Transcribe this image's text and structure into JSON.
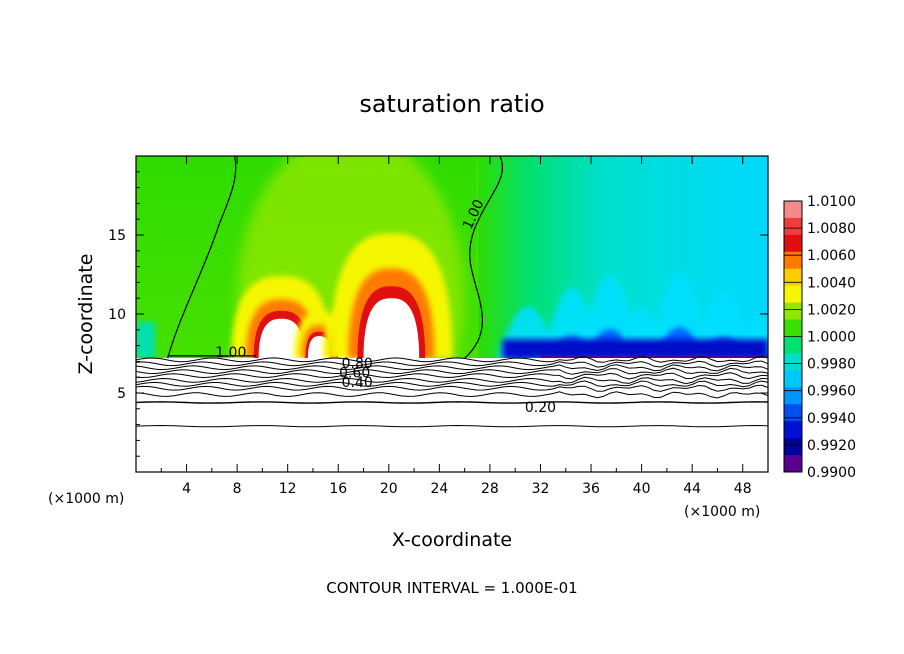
{
  "chart_data": {
    "type": "heatmap",
    "title": "saturation ratio",
    "xlabel": "X-coordinate",
    "ylabel": "Z-coordinate",
    "x_unit_left": "(×1000 m)",
    "x_unit_right": "(×1000 m)",
    "xlim": [
      0,
      50
    ],
    "ylim": [
      0,
      20
    ],
    "xticks": [
      4,
      8,
      12,
      16,
      20,
      24,
      28,
      32,
      36,
      40,
      44,
      48
    ],
    "yticks": [
      5,
      10,
      15
    ],
    "footer": "CONTOUR INTERVAL = 1.000E-01",
    "surface_height": 7.2,
    "colorbar": {
      "levels": [
        "1.0100",
        "1.0080",
        "1.0060",
        "1.0040",
        "1.0020",
        "1.0000",
        "0.9980",
        "0.9960",
        "0.9940",
        "0.9920",
        "0.9900"
      ],
      "colors": [
        "#f48a8a",
        "#f03c3c",
        "#e01010",
        "#ff7a00",
        "#ffcc00",
        "#f6f600",
        "#90e800",
        "#3ce000",
        "#00e070",
        "#00e0c8",
        "#00c8ff",
        "#0096ff",
        "#0050f0",
        "#0010d0",
        "#0000a0",
        "#5a0090"
      ]
    },
    "field_colors": {
      "supersat_core": "#ffffff",
      "rim_high": "#e01010",
      "orange": "#ff7a00",
      "yellow": "#f6f600",
      "lime": "#90e800",
      "green": "#2fdc00",
      "teal": "#00e0b0",
      "cyan": "#00e0ff",
      "blue": "#0064ff",
      "deep_blue": "#0010c8",
      "purple": "#5a0090"
    },
    "contour_labels": [
      {
        "text": "1.00",
        "x": 7.5,
        "z": 7.6
      },
      {
        "text": "1.00",
        "x": 27.0,
        "z": 16.5
      },
      {
        "text": "0.80",
        "x": 17.5,
        "z": 6.9
      },
      {
        "text": "0.60",
        "x": 17.3,
        "z": 6.3
      },
      {
        "text": "0.40",
        "x": 17.5,
        "z": 5.7
      },
      {
        "text": "0.20",
        "x": 32.0,
        "z": 4.1
      }
    ],
    "cloud_cores": [
      {
        "x": 11.5,
        "top": 9.7,
        "half_width": 1.8
      },
      {
        "x": 14.5,
        "top": 8.6,
        "half_width": 0.9
      },
      {
        "x": 17.0,
        "top": 8.8,
        "half_width": 1.0
      },
      {
        "x": 20.2,
        "top": 11.0,
        "half_width": 2.2
      }
    ]
  }
}
